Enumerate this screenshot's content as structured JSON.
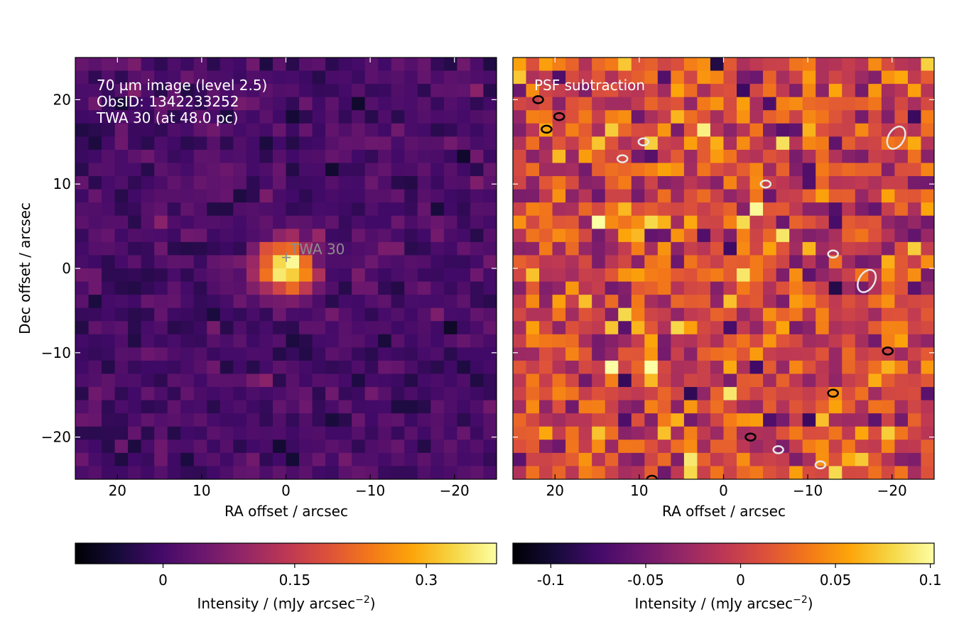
{
  "chart_data": [
    {
      "type": "heatmap",
      "panel": "left",
      "colormap": "inferno",
      "xlabel": "RA offset / arcsec",
      "ylabel": "Dec offset / arcsec",
      "xlim": [
        25,
        -25
      ],
      "ylim": [
        -25,
        25
      ],
      "xticks": [
        20,
        10,
        0,
        -10,
        -20
      ],
      "yticks": [
        20,
        10,
        0,
        -10,
        -20
      ],
      "grid": "32x32 pixels, ~1.6 arcsec each",
      "annotation_lines": [
        "70 µm image (level 2.5)",
        "ObsID: 1342233252",
        "TWA 30 (at 48.0 pc)"
      ],
      "target": {
        "label": "TWA 30",
        "ra_offset": 0,
        "dec_offset": 1.3
      },
      "source_peak": {
        "ra_offset": 0,
        "dec_offset": 0,
        "value": 0.38
      },
      "colorbar": {
        "label": "Intensity / (mJy arcsec$^{-2}$)",
        "label_text": "Intensity / (mJy arcsec",
        "label_sup": "−2",
        "label_close": ")",
        "range": [
          -0.1,
          0.38
        ],
        "ticks": [
          0,
          0.15,
          0.3
        ],
        "tick_labels": [
          "0",
          "0.15",
          "0.3"
        ]
      }
    },
    {
      "type": "heatmap",
      "panel": "right",
      "colormap": "inferno",
      "xlabel": "RA offset / arcsec",
      "xlim": [
        25,
        -25
      ],
      "ylim": [
        -25,
        25
      ],
      "xticks": [
        20,
        10,
        0,
        -10,
        -20
      ],
      "annotation_lines": [
        "PSF subtraction"
      ],
      "contours": [
        {
          "color": "black",
          "level": "positive residual",
          "centers": [
            [
              22,
              20
            ],
            [
              21,
              16.5
            ],
            [
              19.5,
              18
            ],
            [
              -19.5,
              -9.8
            ],
            [
              -13,
              -14.8
            ],
            [
              -3.2,
              -20
            ],
            [
              8.5,
              -25
            ]
          ]
        },
        {
          "color": "white",
          "level": "negative residual",
          "centers": [
            [
              -20.5,
              15.5
            ],
            [
              -17,
              -1.5
            ],
            [
              9.5,
              15
            ],
            [
              12,
              13
            ],
            [
              -13,
              1.7
            ],
            [
              -6.5,
              -21.5
            ],
            [
              -11.5,
              -23.3
            ],
            [
              -5,
              10
            ]
          ]
        }
      ],
      "colorbar": {
        "label": "Intensity / (mJy arcsec$^{-2}$)",
        "label_text": "Intensity / (mJy arcsec",
        "label_sup": "−2",
        "label_close": ")",
        "range": [
          -0.12,
          0.102
        ],
        "ticks": [
          -0.1,
          -0.05,
          0,
          0.05,
          0.1
        ],
        "tick_labels": [
          "-0.1",
          "-0.05",
          "0",
          "0.05",
          "0.1"
        ]
      }
    }
  ],
  "axis": {
    "tick_labels": [
      "20",
      "10",
      "0",
      "−10",
      "−20"
    ],
    "xlabel": "RA offset / arcsec",
    "ylabel": "Dec offset / arcsec"
  }
}
